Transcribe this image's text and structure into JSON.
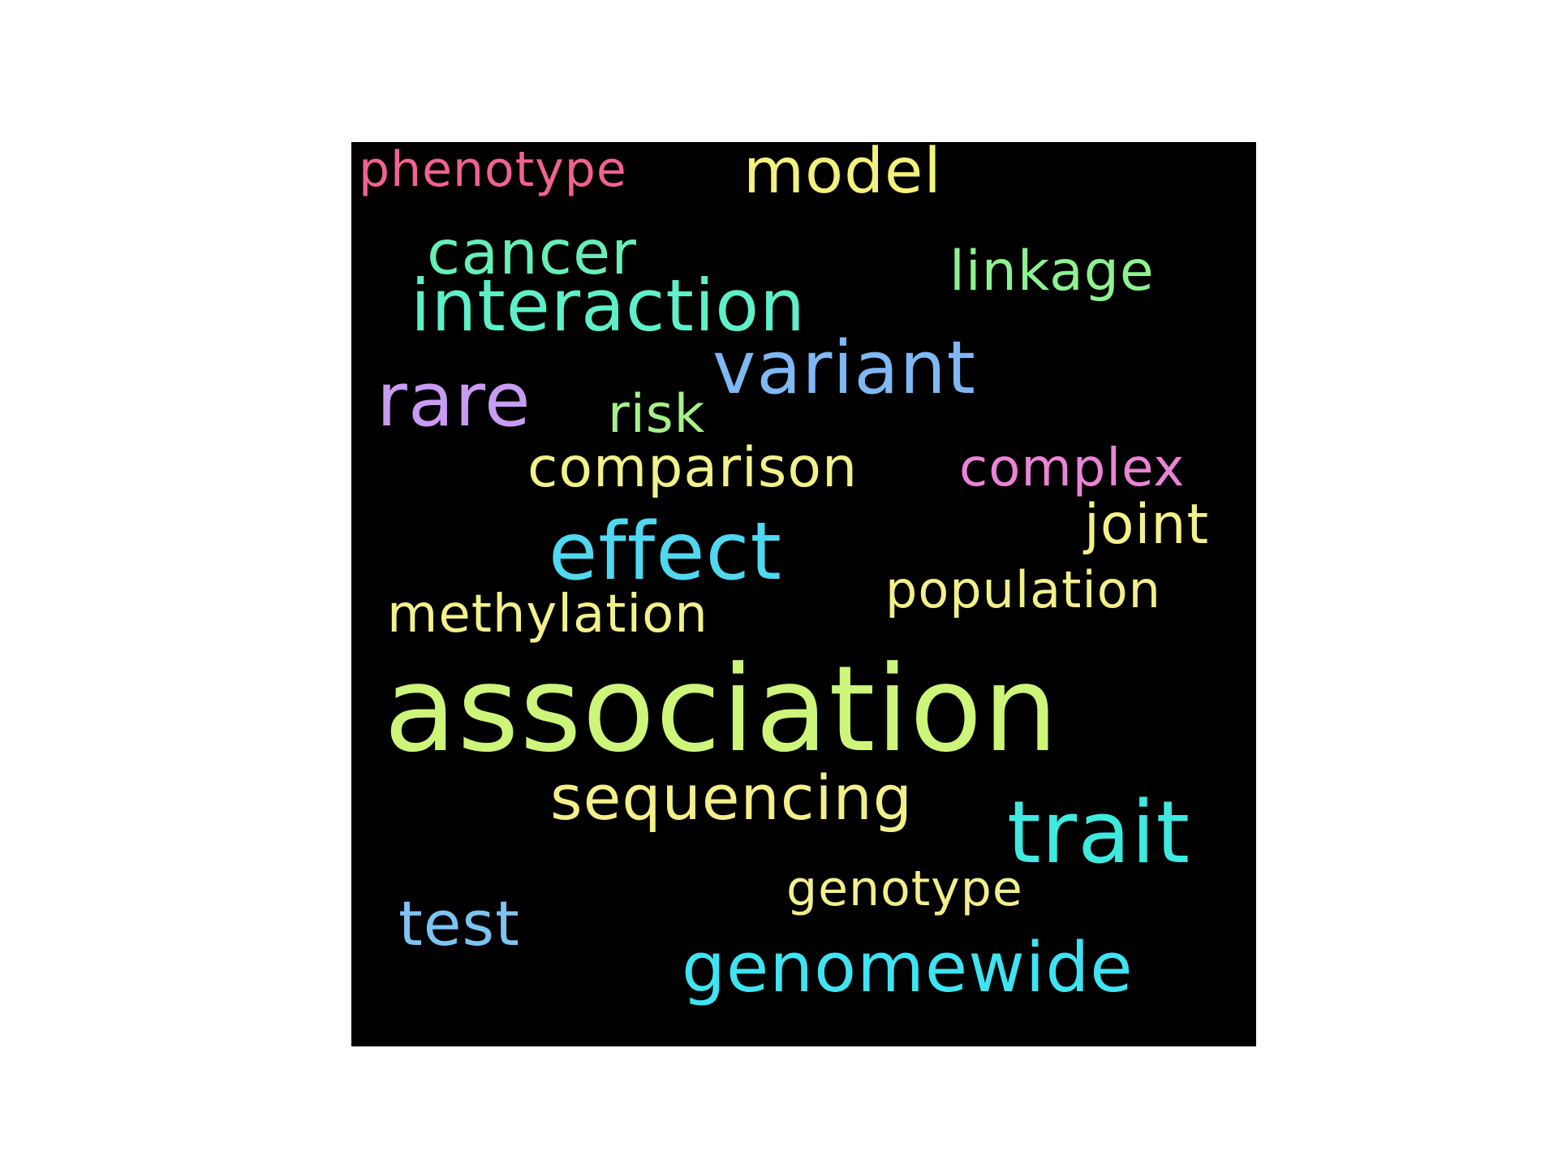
{
  "background_color": "#000000",
  "words": {
    "phenotype": {
      "text": "phenotype",
      "color": "#f06292"
    },
    "model": {
      "text": "model",
      "color": "#f4f17c"
    },
    "cancer": {
      "text": "cancer",
      "color": "#66efb7"
    },
    "linkage": {
      "text": "linkage",
      "color": "#8df28f"
    },
    "interaction": {
      "text": "interaction",
      "color": "#5ef0c8"
    },
    "variant": {
      "text": "variant",
      "color": "#7fb8f3"
    },
    "rare": {
      "text": "rare",
      "color": "#c99cf3"
    },
    "risk": {
      "text": "risk",
      "color": "#a6f28a"
    },
    "comparison": {
      "text": "comparison",
      "color": "#f3f18a"
    },
    "complex": {
      "text": "complex",
      "color": "#ea84d6"
    },
    "joint": {
      "text": "joint",
      "color": "#f5f08a"
    },
    "effect": {
      "text": "effect",
      "color": "#4fd8f0"
    },
    "population": {
      "text": "population",
      "color": "#f3f08a"
    },
    "methylation": {
      "text": "methylation",
      "color": "#f3f18a"
    },
    "association": {
      "text": "association",
      "color": "#cdf57a"
    },
    "sequencing": {
      "text": "sequencing",
      "color": "#f3f08a"
    },
    "trait": {
      "text": "trait",
      "color": "#3eeae0"
    },
    "genotype": {
      "text": "genotype",
      "color": "#f3ef8c"
    },
    "test": {
      "text": "test",
      "color": "#7ec4f3"
    },
    "genomewide": {
      "text": "genomewide",
      "color": "#3fe3f1"
    }
  }
}
